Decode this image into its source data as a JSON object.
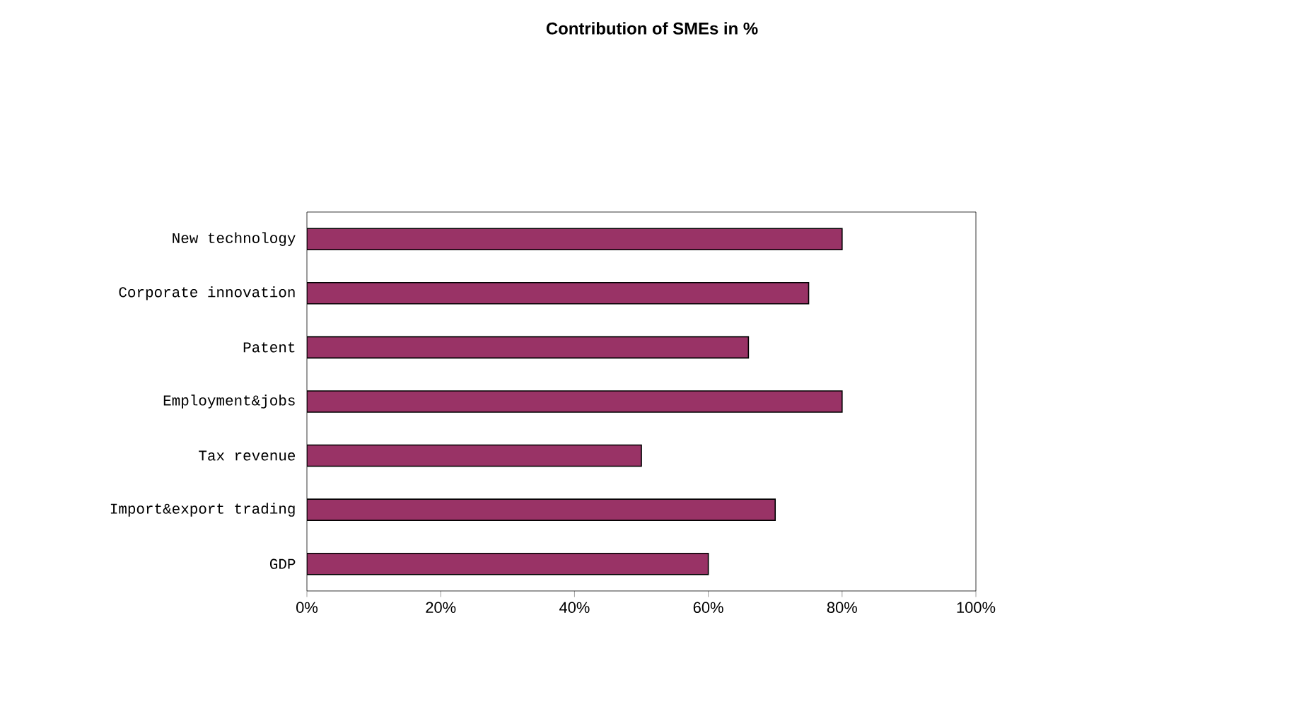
{
  "chart_data": {
    "type": "bar",
    "orientation": "horizontal",
    "title": "Contribution of SMEs in %",
    "categories": [
      "New technology",
      "Corporate innovation",
      "Patent",
      "Employment&jobs",
      "Tax revenue",
      "Import&export trading",
      "GDP"
    ],
    "values": [
      80,
      75,
      66,
      80,
      50,
      70,
      60
    ],
    "color": "#993366",
    "xlim": [
      0,
      100
    ],
    "xticks": [
      {
        "value": 0,
        "label": "0%"
      },
      {
        "value": 20,
        "label": "20%"
      },
      {
        "value": 40,
        "label": "40%"
      },
      {
        "value": 60,
        "label": "60%"
      },
      {
        "value": 80,
        "label": "80%"
      },
      {
        "value": 100,
        "label": "100%"
      }
    ],
    "grid": false
  }
}
